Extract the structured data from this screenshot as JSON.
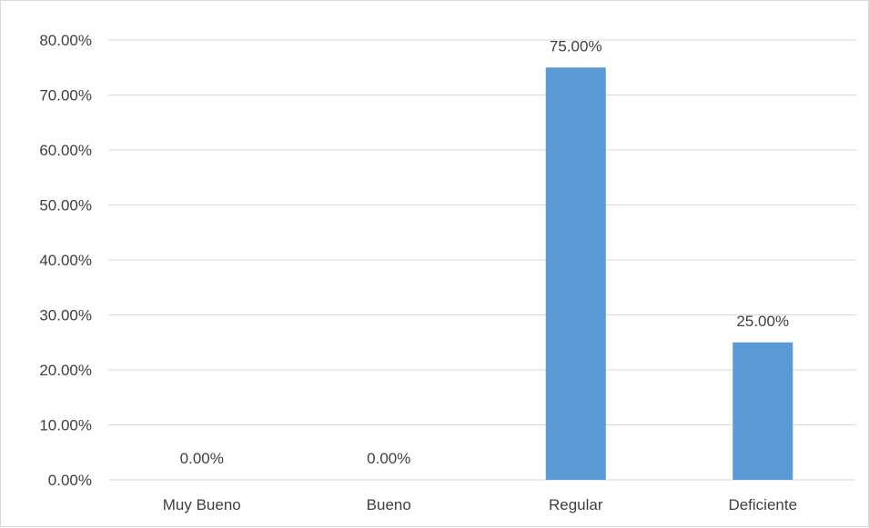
{
  "chart_data": {
    "type": "bar",
    "title": "",
    "xlabel": "",
    "ylabel": "",
    "categories": [
      "Muy Bueno",
      "Bueno",
      "Regular",
      "Deficiente"
    ],
    "values": [
      0,
      0,
      75,
      25
    ],
    "value_labels": [
      "0.00%",
      "0.00%",
      "75.00%",
      "25.00%"
    ],
    "ylim": [
      0,
      80
    ],
    "yticks": [
      0,
      10,
      20,
      30,
      40,
      50,
      60,
      70,
      80
    ],
    "ytick_labels": [
      "0.00%",
      "10.00%",
      "20.00%",
      "30.00%",
      "40.00%",
      "50.00%",
      "60.00%",
      "70.00%",
      "80.00%"
    ],
    "grid": true,
    "legend": "none",
    "colors": {
      "bar": "#5b9bd5",
      "grid": "#d9d9d9",
      "text": "#404040",
      "border": "#d9d9d9"
    }
  }
}
